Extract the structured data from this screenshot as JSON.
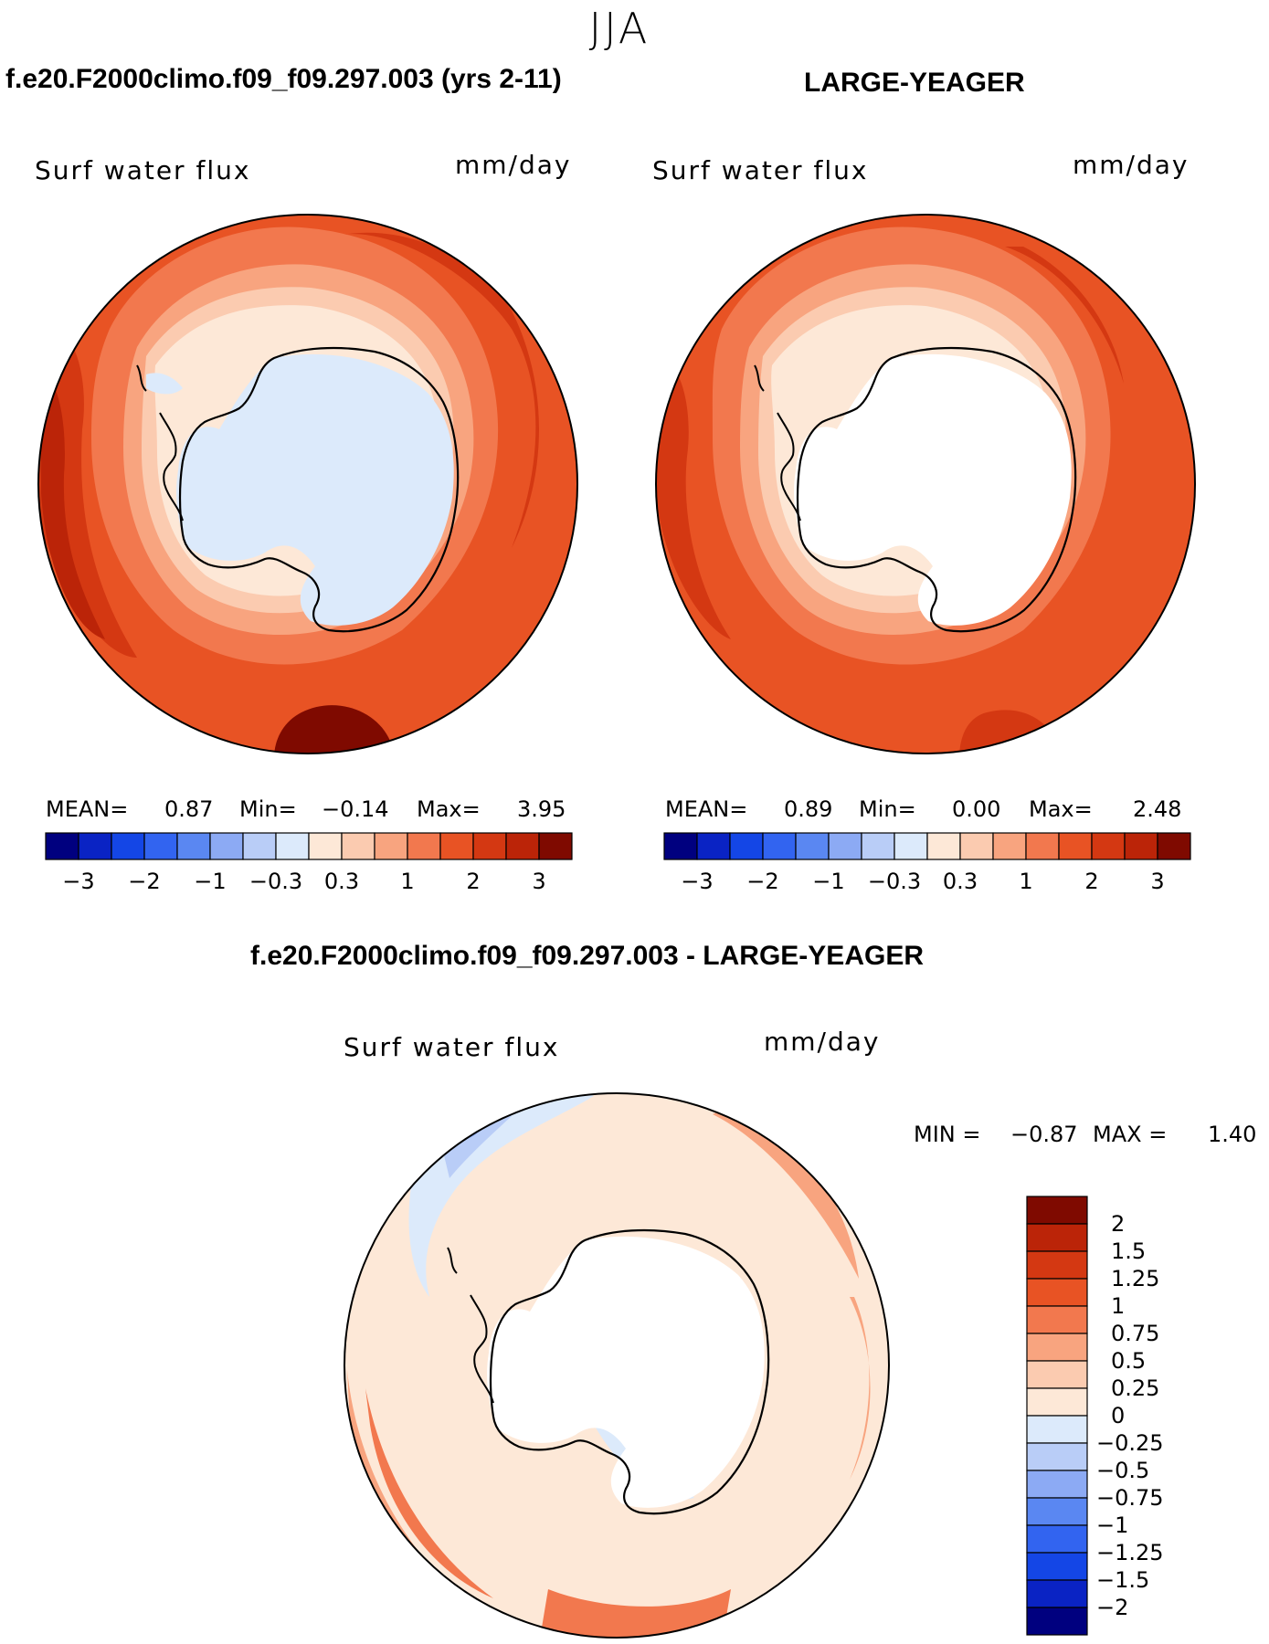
{
  "season": "JJA",
  "panels": [
    {
      "title": "f.e20.F2000climo.f09_f09.297.003 (yrs 2-11)",
      "variable": "Surf water flux",
      "units": "mm/day",
      "stats": {
        "mean_label": "MEAN=",
        "mean": "0.87",
        "min_label": "Min=",
        "min": "−0.14",
        "max_label": "Max=",
        "max": "3.95"
      },
      "colorbar_ticks": [
        "−3",
        "−2",
        "−1",
        "−0.3",
        "0.3",
        "1",
        "2",
        "3"
      ]
    },
    {
      "title": "LARGE-YEAGER",
      "variable": "Surf water flux",
      "units": "mm/day",
      "stats": {
        "mean_label": "MEAN=",
        "mean": "0.89",
        "min_label": "Min=",
        "min": "0.00",
        "max_label": "Max=",
        "max": "2.48"
      },
      "colorbar_ticks": [
        "−3",
        "−2",
        "−1",
        "−0.3",
        "0.3",
        "1",
        "2",
        "3"
      ]
    }
  ],
  "diff_panel": {
    "title": "f.e20.F2000climo.f09_f09.297.003 - LARGE-YEAGER",
    "variable": "Surf water flux",
    "units": "mm/day",
    "stats": {
      "min_label": "MIN =",
      "min": "−0.87",
      "max_label": "MAX =",
      "max": "1.40"
    },
    "colorbar_labels": [
      "2",
      "1.5",
      "1.25",
      "1",
      "0.75",
      "0.5",
      "0.25",
      "0",
      "−0.25",
      "−0.5",
      "−0.75",
      "−1",
      "−1.25",
      "−1.5",
      "−2"
    ]
  },
  "palette": {
    "full": [
      "#00007f",
      "#0a23c4",
      "#1446e6",
      "#3264f0",
      "#5a87f2",
      "#8caaf4",
      "#b9cdf7",
      "#dceafb",
      "#fde8d7",
      "#fbcbb0",
      "#f8a47f",
      "#f2784e",
      "#e85324",
      "#d43812",
      "#bb2408",
      "#7f0a00"
    ],
    "diff": [
      "#7f0a00",
      "#bb2408",
      "#d43812",
      "#e85324",
      "#f2784e",
      "#f8a47f",
      "#fbcbb0",
      "#fde8d7",
      "#dceafb",
      "#b9cdf7",
      "#8caaf4",
      "#5a87f2",
      "#3264f0",
      "#1446e6",
      "#0a23c4",
      "#00007f"
    ]
  }
}
